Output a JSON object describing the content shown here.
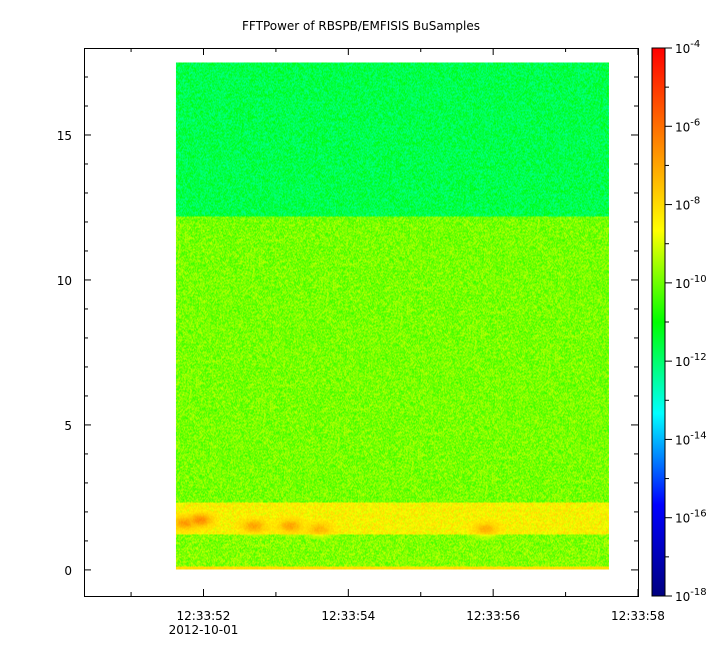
{
  "chart_data": {
    "type": "heatmap",
    "title": "FFTPower of RBSPB/EMFISIS  BuSamples",
    "xlabel": "",
    "ylabel": "",
    "x_ticks": [
      {
        "label": "12:33:52",
        "sublabel": "2012-10-01",
        "value": 52
      },
      {
        "label": "12:33:54",
        "value": 54
      },
      {
        "label": "12:33:56",
        "value": 56
      },
      {
        "label": "12:33:58",
        "value": 58
      }
    ],
    "xlim": [
      50.35,
      58.0
    ],
    "data_xrange": [
      51.62,
      57.6
    ],
    "y_ticks": [
      0,
      5,
      10,
      15
    ],
    "ylim": [
      -0.9,
      18.0
    ],
    "data_yrange": [
      0.0,
      17.5
    ],
    "colorbar": {
      "scale": "log",
      "range_exponents": [
        -18,
        -4
      ],
      "tick_exponents": [
        -18,
        -16,
        -14,
        -12,
        -10,
        -8,
        -6,
        -4
      ],
      "base": "10",
      "colormap": [
        "#000080",
        "#0000ff",
        "#00ffff",
        "#00ff00",
        "#ffff00",
        "#ff8000",
        "#ff0000"
      ]
    },
    "regions": [
      {
        "y0": 12.2,
        "y1": 17.5,
        "log_power": -11.7
      },
      {
        "y0": 2.3,
        "y1": 12.2,
        "log_power": -9.9
      },
      {
        "y0": 1.2,
        "y1": 2.3,
        "log_power": -8.5
      },
      {
        "y0": 0.0,
        "y1": 1.2,
        "log_power": -9.8
      }
    ],
    "hotspots": [
      {
        "x": 51.75,
        "y": 1.6,
        "log_power": -6.8
      },
      {
        "x": 51.95,
        "y": 1.7,
        "log_power": -6.5
      },
      {
        "x": 52.7,
        "y": 1.5,
        "log_power": -7.0
      },
      {
        "x": 53.2,
        "y": 1.5,
        "log_power": -7.0
      },
      {
        "x": 53.6,
        "y": 1.4,
        "log_power": -7.3
      },
      {
        "x": 55.9,
        "y": 1.4,
        "log_power": -7.2
      }
    ]
  }
}
